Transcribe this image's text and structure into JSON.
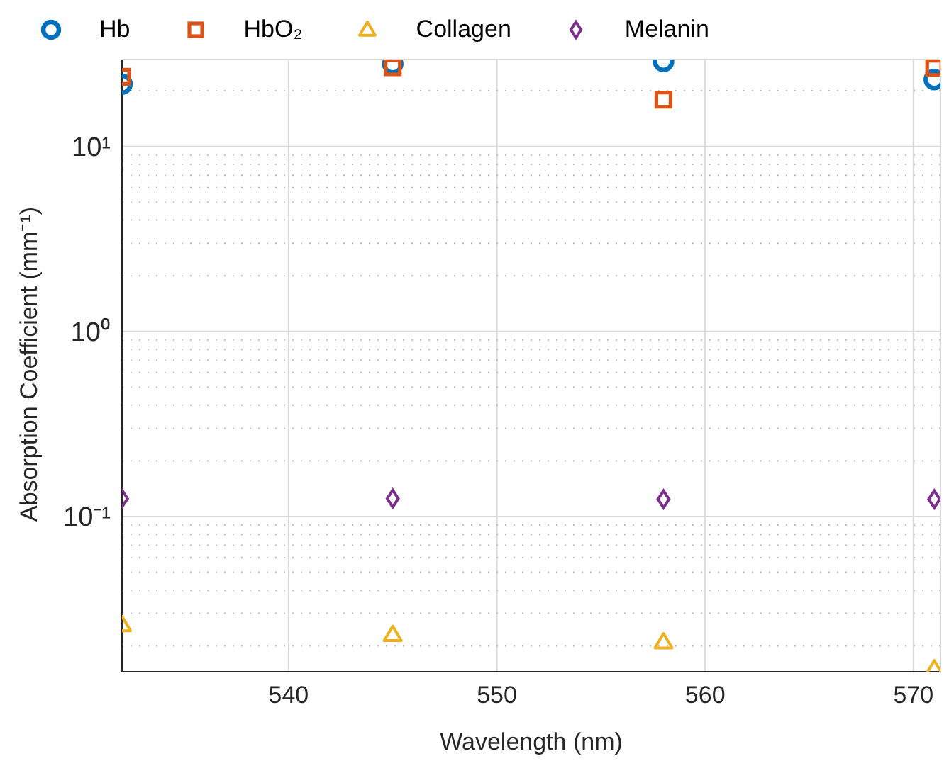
{
  "chart_data": {
    "type": "scatter",
    "xlabel": "Wavelength (nm)",
    "ylabel": "Absorption Coefficient (mm⁻¹)",
    "x": [
      532,
      545,
      558,
      571
    ],
    "series": [
      {
        "name": "Hb",
        "color": "#0072bd",
        "marker": "circle",
        "values": [
          21.7,
          27.9,
          28.8,
          23
        ]
      },
      {
        "name": "HbO₂",
        "color": "#d95319",
        "marker": "square",
        "values": [
          23.8,
          26.8,
          17.9,
          26.6
        ]
      },
      {
        "name": "Collagen",
        "color": "#edb120",
        "marker": "triangle",
        "values": [
          0.026,
          0.023,
          0.021,
          0.015
        ]
      },
      {
        "name": "Melanin",
        "color": "#7e2f8e",
        "marker": "diamond",
        "values": [
          0.125,
          0.125,
          0.124,
          0.124
        ]
      }
    ],
    "xlim": [
      532,
      571.3
    ],
    "xticks": [
      540,
      550,
      560,
      570
    ],
    "ylim": [
      0.0145,
      29.5
    ],
    "yticks": [
      {
        "value": 0.1,
        "label": "10⁻¹"
      },
      {
        "value": 1,
        "label": "10⁰"
      },
      {
        "value": 10,
        "label": "10¹"
      }
    ],
    "log": "y",
    "grid": true,
    "legend": "top"
  }
}
